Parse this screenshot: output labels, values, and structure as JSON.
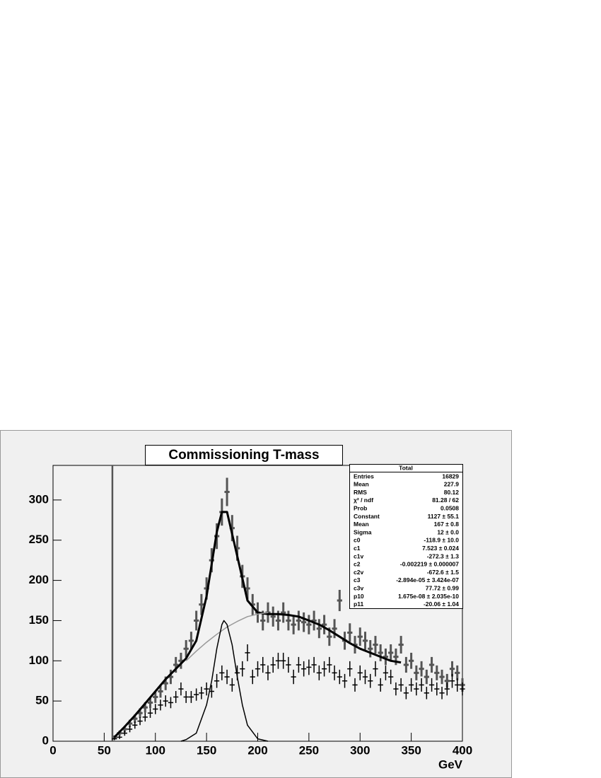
{
  "chart_data": {
    "type": "errorbar",
    "title": "Commissioning T-mass",
    "x_label": "GeV",
    "xlim": [
      0,
      400
    ],
    "ylim": [
      0,
      343
    ],
    "xticks": [
      0,
      50,
      100,
      150,
      200,
      250,
      300,
      350,
      400
    ],
    "yticks": [
      0,
      50,
      100,
      150,
      200,
      250,
      300
    ],
    "vline": 58,
    "error_bars": "sqrt",
    "bin_width": 5,
    "x": [
      60,
      65,
      70,
      75,
      80,
      85,
      90,
      95,
      100,
      105,
      110,
      115,
      120,
      125,
      130,
      135,
      140,
      145,
      150,
      155,
      160,
      165,
      170,
      175,
      180,
      185,
      190,
      195,
      200,
      205,
      210,
      215,
      220,
      225,
      230,
      235,
      240,
      245,
      250,
      255,
      260,
      265,
      270,
      275,
      280,
      285,
      290,
      295,
      300,
      305,
      310,
      315,
      320,
      325,
      330,
      335,
      340,
      345,
      350,
      355,
      360,
      365,
      370,
      375,
      380,
      385,
      390,
      395,
      400
    ],
    "series": [
      {
        "color": "#555555",
        "values": [
          5,
          10,
          15,
          22,
          28,
          35,
          42,
          48,
          55,
          62,
          72,
          80,
          95,
          100,
          115,
          125,
          150,
          170,
          190,
          225,
          255,
          285,
          310,
          265,
          240,
          205,
          190,
          170,
          160,
          150,
          160,
          155,
          150,
          160,
          150,
          145,
          150,
          148,
          145,
          150,
          140,
          145,
          130,
          140,
          175,
          125,
          135,
          120,
          130,
          125,
          115,
          120,
          110,
          105,
          110,
          105,
          120,
          95,
          100,
          85,
          90,
          80,
          95,
          85,
          80,
          75,
          90,
          85,
          70
        ]
      },
      {
        "color": "#000000",
        "values": [
          3,
          5,
          10,
          15,
          20,
          25,
          30,
          35,
          40,
          45,
          50,
          48,
          55,
          65,
          55,
          55,
          58,
          60,
          65,
          62,
          75,
          85,
          80,
          70,
          85,
          90,
          110,
          80,
          90,
          95,
          85,
          95,
          100,
          100,
          95,
          80,
          95,
          90,
          92,
          95,
          85,
          90,
          95,
          85,
          80,
          75,
          90,
          70,
          85,
          80,
          75,
          90,
          70,
          85,
          80,
          65,
          70,
          60,
          70,
          65,
          70,
          60,
          70,
          65,
          60,
          65,
          75,
          70,
          65
        ]
      }
    ],
    "curves": [
      {
        "color": "#000000",
        "width": 3,
        "x": [
          60,
          70,
          80,
          90,
          100,
          110,
          120,
          130,
          140,
          150,
          160,
          165,
          170,
          180,
          190,
          200,
          210,
          220,
          230,
          240,
          250,
          260,
          270,
          280,
          290,
          300,
          310,
          320,
          330,
          340
        ],
        "values": [
          5,
          18,
          32,
          47,
          62,
          77,
          90,
          103,
          125,
          180,
          260,
          285,
          285,
          230,
          175,
          160,
          158,
          158,
          157,
          155,
          150,
          145,
          138,
          130,
          122,
          115,
          110,
          105,
          100,
          98
        ]
      },
      {
        "color": "#999999",
        "width": 1.5,
        "x": [
          130,
          140,
          150,
          160,
          170,
          180,
          190,
          200,
          210
        ],
        "values": [
          100,
          112,
          123,
          133,
          142,
          149,
          155,
          158,
          160
        ]
      },
      {
        "color": "#000000",
        "width": 1.5,
        "x": [
          125,
          130,
          140,
          150,
          155,
          160,
          165,
          167,
          170,
          175,
          180,
          185,
          190,
          200,
          210
        ],
        "values": [
          0,
          2,
          10,
          45,
          75,
          115,
          145,
          150,
          145,
          120,
          80,
          45,
          20,
          3,
          0
        ]
      }
    ],
    "stats": {
      "title": "Total",
      "rows": [
        [
          "Entries",
          "16829"
        ],
        [
          "Mean",
          "227.9"
        ],
        [
          "RMS",
          "80.12"
        ],
        [
          "χ² / ndf",
          "81.28 / 62"
        ],
        [
          "Prob",
          "0.0508"
        ],
        [
          "Constant",
          "1127 ± 55.1"
        ],
        [
          "Mean",
          "167 ± 0.8"
        ],
        [
          "Sigma",
          "12 ± 0.0"
        ],
        [
          "c0",
          "-118.9 ± 10.0"
        ],
        [
          "c1",
          "7.523 ± 0.024"
        ],
        [
          "c1v",
          "-272.3 ± 1.3"
        ],
        [
          "c2",
          "-0.002219 ± 0.000007"
        ],
        [
          "c2v",
          "-672.6 ± 1.5"
        ],
        [
          "c3",
          "-2.894e-05 ± 3.424e-07"
        ],
        [
          "c3v",
          "77.72 ± 0.99"
        ],
        [
          "p10",
          "1.675e-08 ± 2.035e-10"
        ],
        [
          "p11",
          "-20.06 ± 1.04"
        ]
      ]
    }
  }
}
